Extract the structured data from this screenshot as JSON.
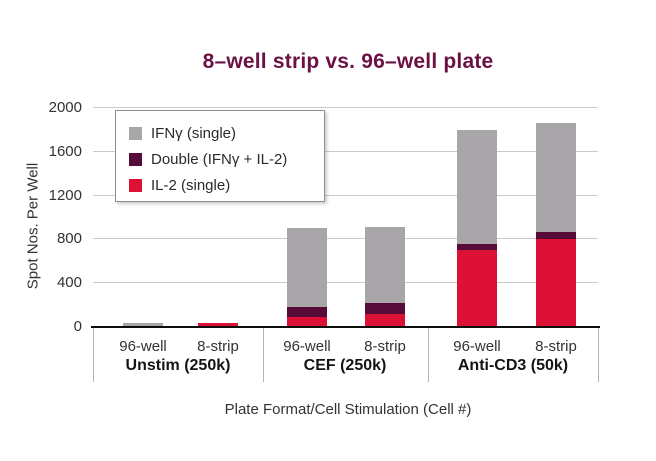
{
  "chart_data": {
    "type": "bar",
    "stacked": true,
    "title": "8–well strip vs. 96–well plate",
    "xlabel": "Plate Format/Cell Stimulation (Cell #)",
    "ylabel": "Spot Nos. Per Well",
    "ylim": [
      0,
      2000
    ],
    "yticks": [
      0,
      400,
      800,
      1200,
      1600,
      2000
    ],
    "grid": true,
    "legend_position": "upper-left-inside",
    "categories": [
      "96-well",
      "8-strip",
      "96-well",
      "8-strip",
      "96-well",
      "8-strip"
    ],
    "group_labels": [
      "Unstim (250k)",
      "CEF (250k)",
      "Anti-CD3 (50k)"
    ],
    "series": [
      {
        "name": "IL-2 (single)",
        "color": "#dc1135",
        "values": [
          0,
          35,
          90,
          115,
          700,
          800
        ]
      },
      {
        "name": "Double (IFNγ + IL-2)",
        "color": "#570b38",
        "values": [
          0,
          0,
          90,
          105,
          60,
          70
        ]
      },
      {
        "name": "IFNγ (single)",
        "color": "#a8a6a8",
        "values": [
          35,
          0,
          720,
          690,
          1040,
          990
        ]
      }
    ],
    "series_order_note": "series listed bottom-to-top of stack; legend shown top-to-bottom as IFNγ, Double, IL-2"
  },
  "colors": {
    "title": "#6b1144",
    "axis_text": "#333333",
    "gridline": "#cbcbcb",
    "axis_line": "#0d0d0d",
    "separator": "#b3b3b3",
    "legend_border": "#8f8f8f",
    "background": "#ffffff"
  }
}
